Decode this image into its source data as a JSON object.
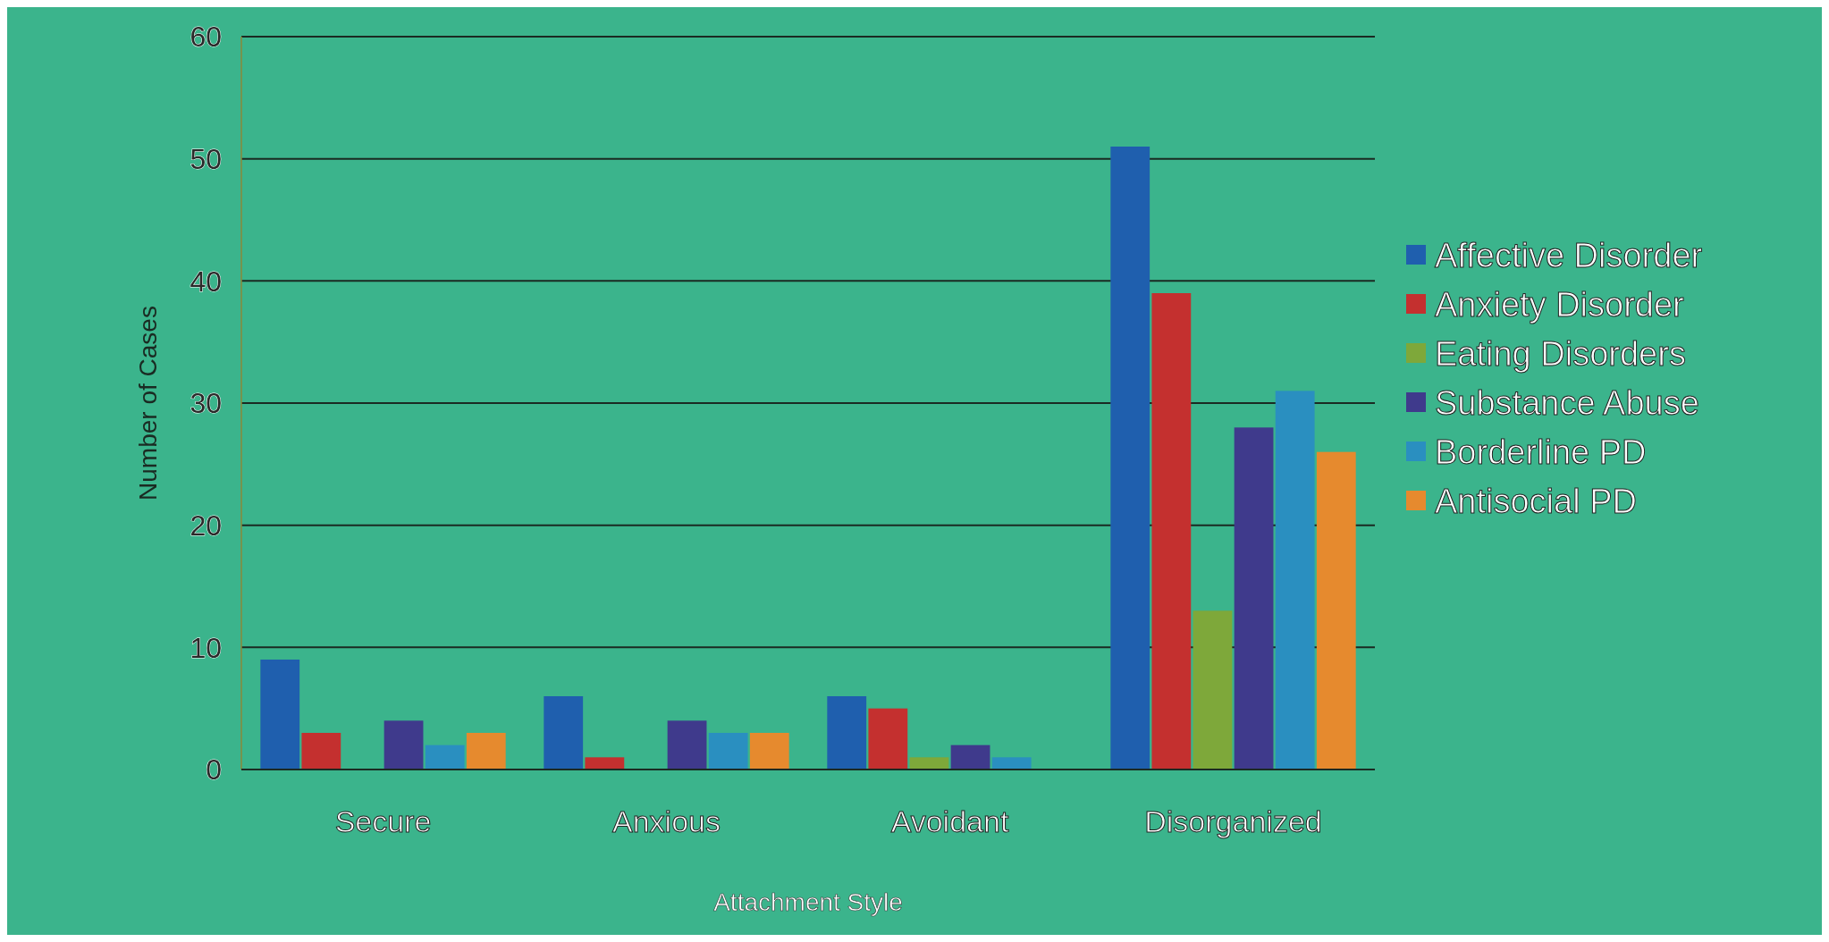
{
  "chart_data": {
    "type": "bar",
    "xlabel": "Attachment Style",
    "ylabel": "Number of Cases",
    "categories": [
      "Secure",
      "Anxious",
      "Avoidant",
      "Disorganized"
    ],
    "series": [
      {
        "name": "Affective Disorder",
        "color": "#1f5fae",
        "values": [
          9,
          6,
          6,
          51
        ]
      },
      {
        "name": "Anxiety Disorder",
        "color": "#c4302f",
        "values": [
          3,
          1,
          5,
          39
        ]
      },
      {
        "name": "Eating Disorders",
        "color": "#7ea83a",
        "values": [
          0,
          0,
          1,
          13
        ]
      },
      {
        "name": "Substance Abuse",
        "color": "#3f3a8c",
        "values": [
          4,
          4,
          2,
          28
        ]
      },
      {
        "name": "Borderline PD",
        "color": "#2a8fc0",
        "values": [
          2,
          3,
          1,
          31
        ]
      },
      {
        "name": "Antisocial PD",
        "color": "#e68a2e",
        "values": [
          3,
          3,
          0,
          26
        ]
      }
    ],
    "ylim": [
      0,
      60
    ],
    "yticks": [
      0,
      10,
      20,
      30,
      40,
      50,
      60
    ],
    "grid": "y",
    "legend": "right"
  }
}
